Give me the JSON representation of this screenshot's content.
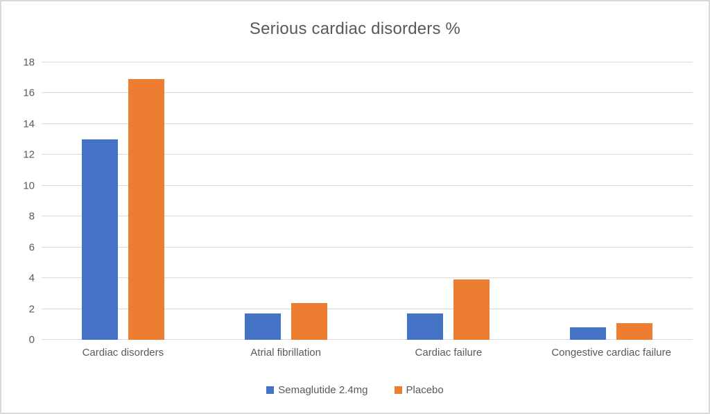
{
  "chart_data": {
    "type": "bar",
    "title": "Serious cardiac disorders %",
    "categories": [
      "Cardiac disorders",
      "Atrial fibrillation",
      "Cardiac failure",
      "Congestive cardiac failure"
    ],
    "series": [
      {
        "name": "Semaglutide 2.4mg",
        "color": "#4472C4",
        "values": [
          13.0,
          1.7,
          1.7,
          0.8
        ]
      },
      {
        "name": "Placebo",
        "color": "#ED7D31",
        "values": [
          16.9,
          2.4,
          3.9,
          1.1
        ]
      }
    ],
    "xlabel": "",
    "ylabel": "",
    "ylim": [
      0,
      18
    ],
    "yticks": [
      0,
      2,
      4,
      6,
      8,
      10,
      12,
      14,
      16,
      18
    ],
    "grid": true,
    "legend_position": "bottom"
  },
  "colors": {
    "gridline": "#D9D9D9",
    "axis_text": "#595959",
    "title_text": "#595959",
    "background": "#FFFFFF",
    "border": "#D9D9D9"
  }
}
